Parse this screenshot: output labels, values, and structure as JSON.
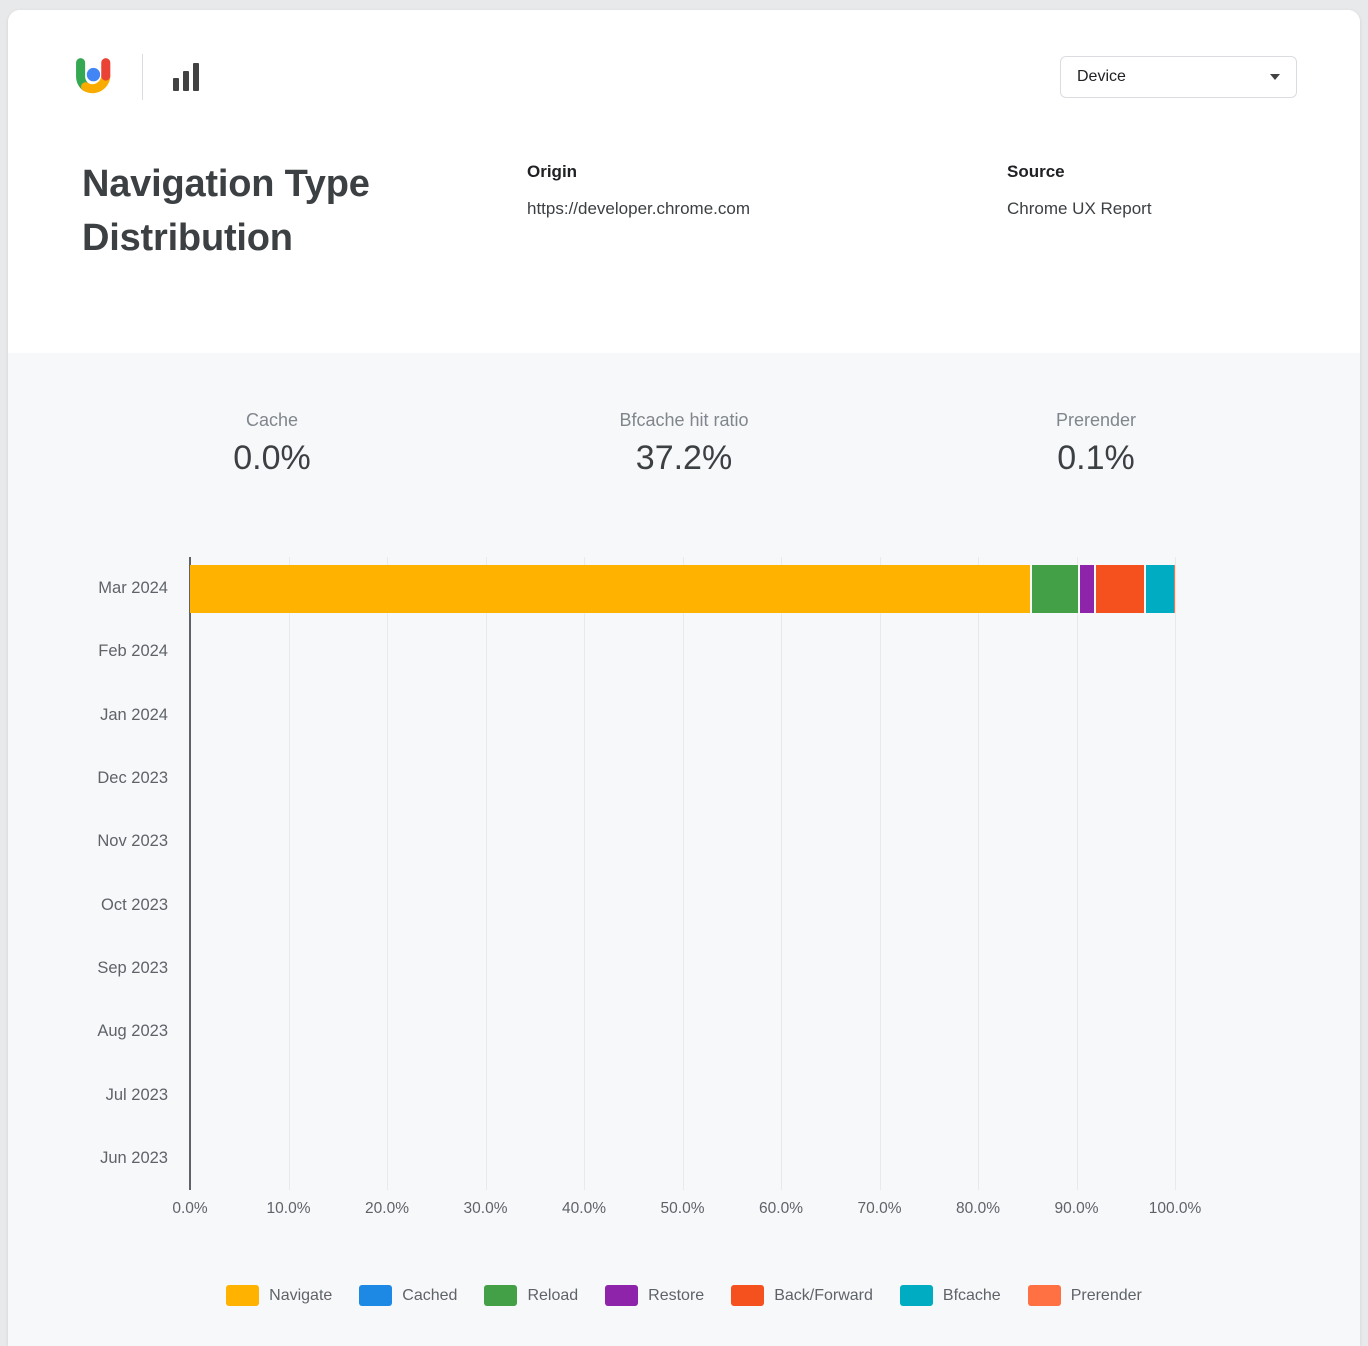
{
  "header": {
    "logo": "chrome-ux-report-logo",
    "tool_icon": "bar-chart-icon",
    "device_dropdown": {
      "value": "Device"
    }
  },
  "title": "Navigation Type Distribution",
  "origin": {
    "label": "Origin",
    "value": "https://developer.chrome.com"
  },
  "source": {
    "label": "Source",
    "value": "Chrome UX Report"
  },
  "stats": [
    {
      "label": "Cache",
      "value": "0.0%"
    },
    {
      "label": "Bfcache hit ratio",
      "value": "37.2%"
    },
    {
      "label": "Prerender",
      "value": "0.1%"
    }
  ],
  "chart_data": {
    "type": "bar",
    "orientation": "horizontal",
    "stacked": true,
    "categories": [
      "Mar 2024",
      "Feb 2024",
      "Jan 2024",
      "Dec 2023",
      "Nov 2023",
      "Oct 2023",
      "Sep 2023",
      "Aug 2023",
      "Jul 2023",
      "Jun 2023"
    ],
    "series": [
      {
        "name": "Navigate",
        "color": "#FFB300",
        "values": [
          85.3,
          0,
          0,
          0,
          0,
          0,
          0,
          0,
          0,
          0
        ]
      },
      {
        "name": "Cached",
        "color": "#1E88E5",
        "values": [
          0.0,
          0,
          0,
          0,
          0,
          0,
          0,
          0,
          0,
          0
        ]
      },
      {
        "name": "Reload",
        "color": "#43A047",
        "values": [
          4.9,
          0,
          0,
          0,
          0,
          0,
          0,
          0,
          0,
          0
        ]
      },
      {
        "name": "Restore",
        "color": "#8E24AA",
        "values": [
          1.6,
          0,
          0,
          0,
          0,
          0,
          0,
          0,
          0,
          0
        ]
      },
      {
        "name": "Back/Forward",
        "color": "#F4511E",
        "values": [
          5.1,
          0,
          0,
          0,
          0,
          0,
          0,
          0,
          0,
          0
        ]
      },
      {
        "name": "Bfcache",
        "color": "#00ACC1",
        "values": [
          3.0,
          0,
          0,
          0,
          0,
          0,
          0,
          0,
          0,
          0
        ]
      },
      {
        "name": "Prerender",
        "color": "#FF7043",
        "values": [
          0.1,
          0,
          0,
          0,
          0,
          0,
          0,
          0,
          0,
          0
        ]
      }
    ],
    "x_ticks": [
      "0.0%",
      "10.0%",
      "20.0%",
      "30.0%",
      "40.0%",
      "50.0%",
      "60.0%",
      "70.0%",
      "80.0%",
      "90.0%",
      "100.0%"
    ],
    "xlim": [
      0,
      100
    ],
    "grid": true,
    "legend_position": "bottom",
    "colors": {
      "axis": "#5f6368",
      "gridline": "#e8eaec",
      "panel_background": "#f7f8fa"
    }
  }
}
